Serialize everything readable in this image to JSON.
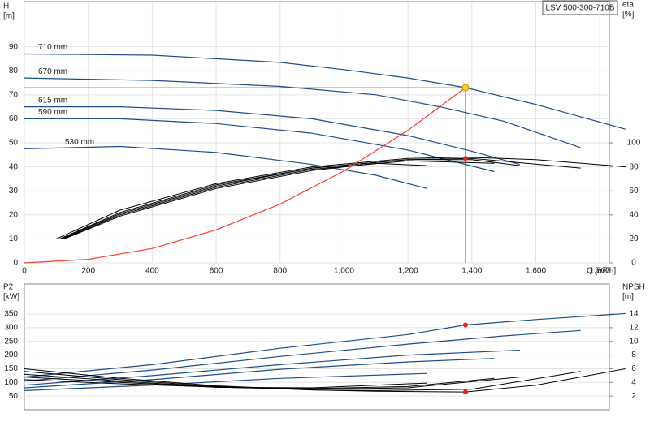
{
  "title_box": "LSV 500-300-710B",
  "chart_data": [
    {
      "type": "line",
      "ylabel": [
        "H",
        "[m]"
      ],
      "y2label": [
        "eta",
        "[%]"
      ],
      "xlabel": "Q [m³/h]",
      "xlim": [
        0,
        1830
      ],
      "xticks": [
        0,
        200,
        400,
        600,
        800,
        {
          "value": 1000,
          "label": "1,000"
        },
        {
          "value": 1200,
          "label": "1,200"
        },
        {
          "value": 1400,
          "label": "1,400"
        },
        {
          "value": 1600,
          "label": "1,600"
        },
        {
          "value": 1800,
          "label": "1,800"
        }
      ],
      "ylim": [
        0,
        108.8
      ],
      "yticks": [
        0,
        10,
        20,
        30,
        40,
        50,
        60,
        70,
        80,
        90
      ],
      "y2lim": [
        0,
        217.6
      ],
      "y2ticks": [
        0,
        20,
        40,
        60,
        80,
        100
      ],
      "grid": true,
      "series": [
        {
          "name": "710 mm",
          "color": "#1f4e8c",
          "x": [
            0,
            400,
            800,
            1000,
            1200,
            1380,
            1600,
            1880
          ],
          "values": [
            87,
            86.5,
            83.5,
            80.5,
            77,
            73,
            66,
            55.7
          ]
        },
        {
          "name": "670 mm",
          "color": "#1f4e8c",
          "x": [
            0,
            400,
            800,
            1100,
            1300,
            1500,
            1740
          ],
          "values": [
            77,
            76,
            73.5,
            70,
            65,
            59,
            48
          ]
        },
        {
          "name": "615 mm",
          "color": "#1f4e8c",
          "x": [
            0,
            300,
            600,
            900,
            1200,
            1400,
            1550
          ],
          "values": [
            65,
            65,
            63.5,
            60,
            53,
            46.5,
            41
          ]
        },
        {
          "name": "590 mm",
          "color": "#1f4e8c",
          "x": [
            0,
            300,
            600,
            900,
            1200,
            1470
          ],
          "values": [
            60,
            60,
            58,
            54,
            47,
            38
          ]
        },
        {
          "name": "530 mm",
          "color": "#1f4e8c",
          "x": [
            0,
            300,
            600,
            900,
            1100,
            1260
          ],
          "values": [
            47.5,
            48.5,
            46,
            41,
            36.5,
            31
          ]
        },
        {
          "color": "#000000",
          "axis": "y2",
          "x": [
            100,
            300,
            600,
            900,
            1200,
            1380,
            1600,
            1880
          ],
          "values": [
            20,
            44,
            66,
            80,
            87,
            88,
            86,
            80
          ]
        },
        {
          "color": "#000000",
          "axis": "y2",
          "x": [
            110,
            300,
            600,
            900,
            1200,
            1400,
            1740
          ],
          "values": [
            20,
            42,
            65,
            79,
            86,
            87,
            79
          ]
        },
        {
          "color": "#000000",
          "axis": "y2",
          "x": [
            115,
            300,
            600,
            900,
            1200,
            1400,
            1550
          ],
          "values": [
            20,
            41,
            64,
            79,
            86,
            86,
            81
          ]
        },
        {
          "color": "#000000",
          "axis": "y2",
          "x": [
            120,
            300,
            600,
            900,
            1200,
            1470
          ],
          "values": [
            20,
            40,
            63,
            78,
            85,
            83
          ]
        },
        {
          "color": "#000000",
          "axis": "y2",
          "x": [
            125,
            300,
            600,
            900,
            1100,
            1260
          ],
          "values": [
            20,
            39,
            62,
            77,
            83,
            81
          ]
        },
        {
          "color": "#ff3b30",
          "x": [
            0,
            200,
            400,
            600,
            800,
            1000,
            1200,
            1380
          ],
          "values": [
            0,
            1.5,
            6,
            13.8,
            24.5,
            38.3,
            55.2,
            73
          ]
        }
      ],
      "operating_point": {
        "x": 1380,
        "y": 73,
        "eta": 87
      }
    },
    {
      "type": "line",
      "ylabel": [
        "P2",
        "[kW]"
      ],
      "y2label": [
        "NPSH",
        "[m]"
      ],
      "xlim": [
        0,
        1830
      ],
      "ylim": [
        0,
        460
      ],
      "yticks": [
        50,
        100,
        150,
        200,
        250,
        300,
        350
      ],
      "y2lim": [
        0,
        18.4
      ],
      "y2ticks": [
        2,
        4,
        6,
        8,
        10,
        12,
        14
      ],
      "grid": true,
      "series": [
        {
          "color": "#1f4e8c",
          "x": [
            0,
            400,
            800,
            1200,
            1380,
            1600,
            1880
          ],
          "values": [
            120,
            165,
            225,
            275,
            310,
            330,
            352
          ]
        },
        {
          "color": "#1f4e8c",
          "x": [
            0,
            400,
            800,
            1200,
            1500,
            1740
          ],
          "values": [
            105,
            145,
            195,
            240,
            270,
            290
          ]
        },
        {
          "color": "#1f4e8c",
          "x": [
            0,
            400,
            800,
            1200,
            1550
          ],
          "values": [
            90,
            125,
            165,
            200,
            218
          ]
        },
        {
          "color": "#1f4e8c",
          "x": [
            0,
            400,
            800,
            1200,
            1470
          ],
          "values": [
            80,
            110,
            148,
            175,
            188
          ]
        },
        {
          "color": "#1f4e8c",
          "x": [
            0,
            400,
            800,
            1260
          ],
          "values": [
            70,
            90,
            115,
            133
          ]
        },
        {
          "color": "#000000",
          "axis": "y2",
          "x": [
            0,
            300,
            600,
            900,
            1100,
            1380,
            1600,
            1880
          ],
          "values": [
            6,
            4.6,
            3.5,
            2.9,
            2.7,
            2.6,
            3.6,
            6
          ]
        },
        {
          "color": "#000000",
          "axis": "y2",
          "x": [
            0,
            300,
            600,
            900,
            1100,
            1400,
            1740
          ],
          "values": [
            5.6,
            4.4,
            3.4,
            2.9,
            2.8,
            3,
            5.6
          ]
        },
        {
          "color": "#000000",
          "axis": "y2",
          "x": [
            0,
            300,
            600,
            900,
            1200,
            1550
          ],
          "values": [
            5.2,
            4.2,
            3.3,
            3,
            3.2,
            4.8
          ]
        },
        {
          "color": "#000000",
          "axis": "y2",
          "x": [
            0,
            300,
            600,
            900,
            1200,
            1470
          ],
          "values": [
            4.8,
            4,
            3.3,
            3.1,
            3.4,
            4.6
          ]
        },
        {
          "color": "#000000",
          "axis": "y2",
          "x": [
            0,
            300,
            600,
            900,
            1260
          ],
          "values": [
            4.4,
            3.8,
            3.3,
            3.2,
            3.9
          ]
        }
      ],
      "operating_point": {
        "x": 1380,
        "y": 310,
        "npsh": 2.6
      }
    }
  ]
}
